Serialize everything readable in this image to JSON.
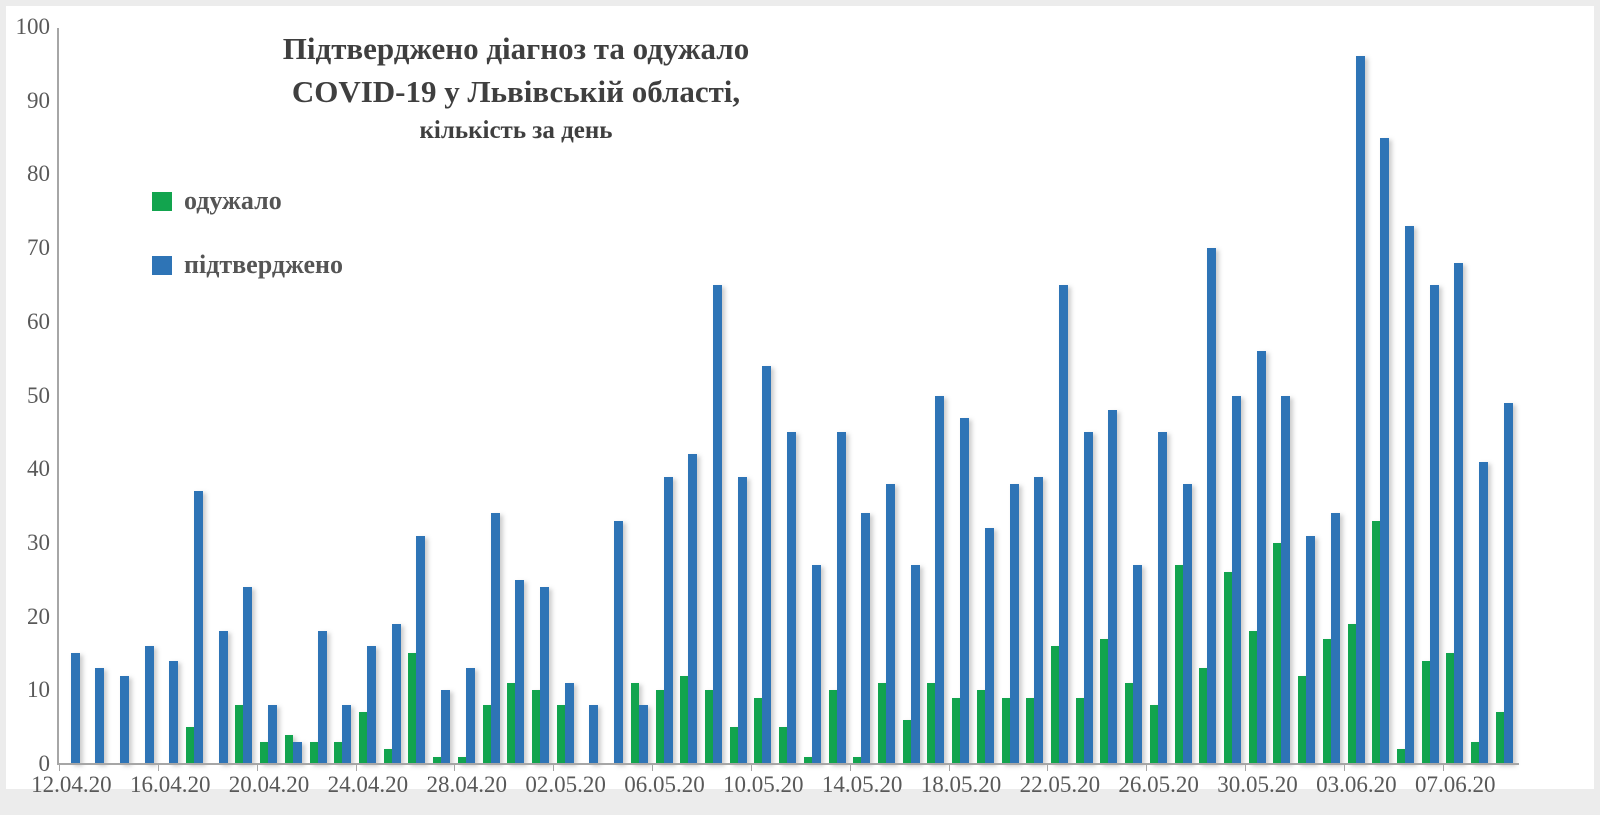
{
  "chart_data": {
    "type": "bar",
    "title_lines": [
      "Підтверджено діагноз та одужало",
      "COVID-19 у Львівській області,",
      "кількість за день"
    ],
    "legend": [
      {
        "name": "одужало",
        "color": "#12A44E"
      },
      {
        "name": "підтверджено",
        "color": "#2E74B6"
      }
    ],
    "categories": [
      "12.04.20",
      "13.04.20",
      "14.04.20",
      "15.04.20",
      "16.04.20",
      "17.04.20",
      "18.04.20",
      "19.04.20",
      "20.04.20",
      "21.04.20",
      "22.04.20",
      "23.04.20",
      "24.04.20",
      "25.04.20",
      "26.04.20",
      "27.04.20",
      "28.04.20",
      "29.04.20",
      "30.04.20",
      "01.05.20",
      "02.05.20",
      "03.05.20",
      "04.05.20",
      "05.05.20",
      "06.05.20",
      "07.05.20",
      "08.05.20",
      "09.05.20",
      "10.05.20",
      "11.05.20",
      "12.05.20",
      "13.05.20",
      "14.05.20",
      "15.05.20",
      "16.05.20",
      "17.05.20",
      "18.05.20",
      "19.05.20",
      "20.05.20",
      "21.05.20",
      "22.05.20",
      "23.05.20",
      "24.05.20",
      "25.05.20",
      "26.05.20",
      "27.05.20",
      "28.05.20",
      "29.05.20",
      "30.05.20",
      "31.05.20",
      "01.06.20",
      "02.06.20",
      "03.06.20",
      "04.06.20",
      "05.06.20",
      "06.06.20",
      "07.06.20",
      "08.06.20",
      "09.06.20"
    ],
    "x_tick_labels": [
      "12.04.20",
      "16.04.20",
      "20.04.20",
      "24.04.20",
      "28.04.20",
      "02.05.20",
      "06.05.20",
      "10.05.20",
      "14.05.20",
      "18.05.20",
      "22.05.20",
      "26.05.20",
      "30.05.20",
      "03.06.20",
      "07.06.20"
    ],
    "series": [
      {
        "name": "одужало",
        "color": "#12A44E",
        "values": [
          0,
          0,
          0,
          0,
          0,
          5,
          0,
          8,
          3,
          4,
          3,
          3,
          7,
          2,
          15,
          1,
          1,
          8,
          11,
          10,
          8,
          0,
          0,
          11,
          10,
          12,
          10,
          5,
          9,
          5,
          1,
          10,
          1,
          11,
          6,
          11,
          9,
          10,
          9,
          9,
          16,
          9,
          17,
          11,
          8,
          27,
          13,
          26,
          18,
          30,
          12,
          17,
          19,
          33,
          2,
          14,
          15,
          3,
          7
        ]
      },
      {
        "name": "підтверджено",
        "color": "#2E74B6",
        "values": [
          15,
          13,
          12,
          16,
          14,
          37,
          18,
          24,
          8,
          3,
          18,
          8,
          16,
          19,
          31,
          10,
          13,
          34,
          25,
          24,
          11,
          8,
          33,
          8,
          39,
          42,
          65,
          39,
          54,
          45,
          27,
          45,
          34,
          38,
          27,
          50,
          47,
          32,
          38,
          39,
          65,
          45,
          48,
          27,
          45,
          38,
          70,
          50,
          56,
          50,
          31,
          34,
          96,
          85,
          73,
          65,
          68,
          41,
          49
        ]
      }
    ],
    "xlabel": "",
    "ylabel": "",
    "ylim": [
      0,
      100
    ],
    "y_ticks": [
      0,
      10,
      20,
      30,
      40,
      50,
      60,
      70,
      80,
      90,
      100
    ],
    "grid": false,
    "legend_position": "upper-left",
    "axis_color": "#a6a6a6",
    "label_color": "#595959",
    "title_color": "#3f3f3f"
  }
}
